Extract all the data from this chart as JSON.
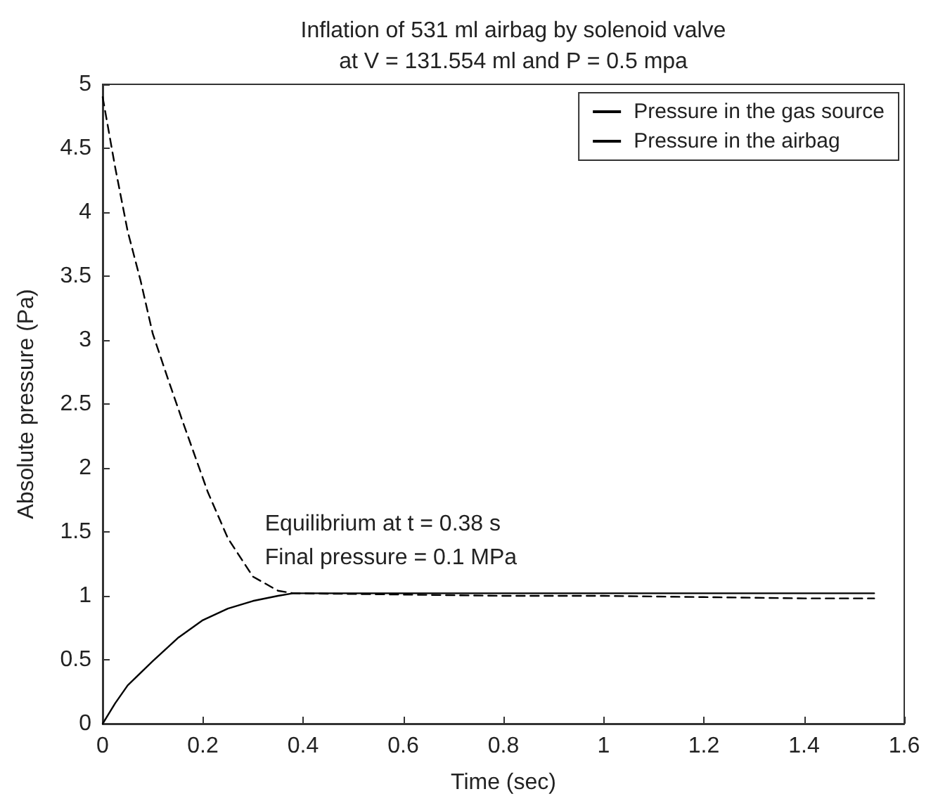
{
  "chart_data": {
    "type": "line",
    "title": "Inflation of 531 ml airbag by solenoid valve\nat V = 131.554 ml and P = 0.5 mpa",
    "xlabel": "Time (sec)",
    "ylabel": "Absolute pressure (Pa)",
    "series": [
      {
        "name": "Pressure in the gas source",
        "color": "#000000",
        "line_style": "dashed",
        "x": [
          0,
          0.025,
          0.05,
          0.076,
          0.1,
          0.13,
          0.16,
          0.21,
          0.25,
          0.3,
          0.35,
          0.38,
          0.6,
          0.8,
          1.0,
          1.2,
          1.4,
          1.54
        ],
        "values": [
          4.9,
          4.35,
          3.85,
          3.46,
          3.05,
          2.7,
          2.36,
          1.81,
          1.45,
          1.15,
          1.04,
          1.02,
          1.01,
          1.0,
          1.0,
          0.99,
          0.98,
          0.98
        ]
      },
      {
        "name": "Pressure in the airbag",
        "color": "#000000",
        "line_style": "solid",
        "x": [
          0,
          0.025,
          0.05,
          0.1,
          0.15,
          0.2,
          0.25,
          0.3,
          0.35,
          0.38,
          0.6,
          0.8,
          1.0,
          1.2,
          1.4,
          1.54
        ],
        "values": [
          0,
          0.16,
          0.3,
          0.49,
          0.67,
          0.81,
          0.9,
          0.96,
          1.0,
          1.02,
          1.02,
          1.02,
          1.02,
          1.02,
          1.02,
          1.02
        ]
      }
    ],
    "xlim": [
      0,
      1.6
    ],
    "xticks": [
      0,
      0.2,
      0.4,
      0.6,
      0.8,
      1,
      1.2,
      1.4,
      1.6
    ],
    "ylim": [
      0,
      5
    ],
    "yticks": [
      0,
      0.5,
      1,
      1.5,
      2,
      2.5,
      3,
      3.5,
      4,
      4.5,
      5
    ],
    "annotations": [
      {
        "text": "Equilibrium at t = 0.38 s\nFinal pressure = 0.1 MPa",
        "x": 0.38,
        "y": 1.02
      }
    ],
    "grid": false,
    "legend": "top right",
    "marker": "none"
  }
}
